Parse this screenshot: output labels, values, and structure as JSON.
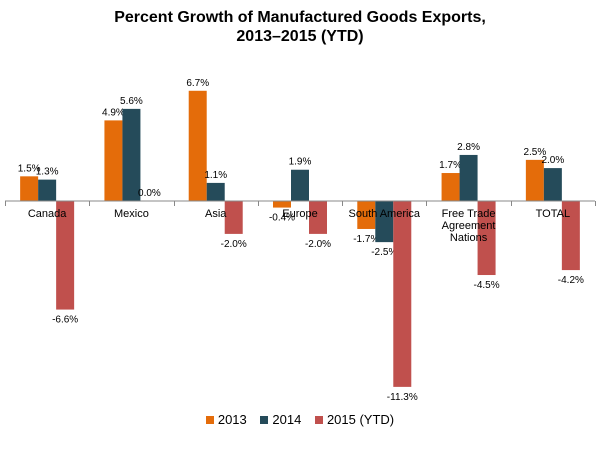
{
  "chart_data": {
    "type": "bar",
    "title_line1": "Percent Growth of Manufactured Goods Exports,",
    "title_line2": "2013–2015 (YTD)",
    "categories": [
      [
        "Canada"
      ],
      [
        "Mexico"
      ],
      [
        "Asia"
      ],
      [
        "Europe"
      ],
      [
        "South America"
      ],
      [
        "Free Trade",
        "Agreement",
        "Nations"
      ],
      [
        "TOTAL"
      ]
    ],
    "series": [
      {
        "name": "2013",
        "color": "#E46C0A",
        "values": [
          1.5,
          4.9,
          6.7,
          -0.4,
          -1.7,
          1.7,
          2.5
        ],
        "labels": [
          "1.5%",
          "4.9%",
          "6.7%",
          "-0.4%",
          "-1.7%",
          "1.7%",
          "2.5%"
        ]
      },
      {
        "name": "2014",
        "color": "#254B5A",
        "values": [
          1.3,
          5.6,
          1.1,
          1.9,
          -2.5,
          2.8,
          2.0
        ],
        "labels": [
          "1.3%",
          "5.6%",
          "1.1%",
          "1.9%",
          "-2.5%",
          "2.8%",
          "2.0%"
        ]
      },
      {
        "name": "2015 (YTD)",
        "color": "#C0504D",
        "values": [
          -6.6,
          0.0,
          -2.0,
          -2.0,
          -11.3,
          -4.5,
          -4.2
        ],
        "labels": [
          "-6.6%",
          "0.0%",
          "-2.0%",
          "-2.0%",
          "-11.3%",
          "-4.5%",
          "-4.2%"
        ]
      }
    ],
    "ylim": [
      -12,
      7
    ],
    "xlabel": "",
    "ylabel": "",
    "grid": false,
    "legend": "bottom"
  }
}
